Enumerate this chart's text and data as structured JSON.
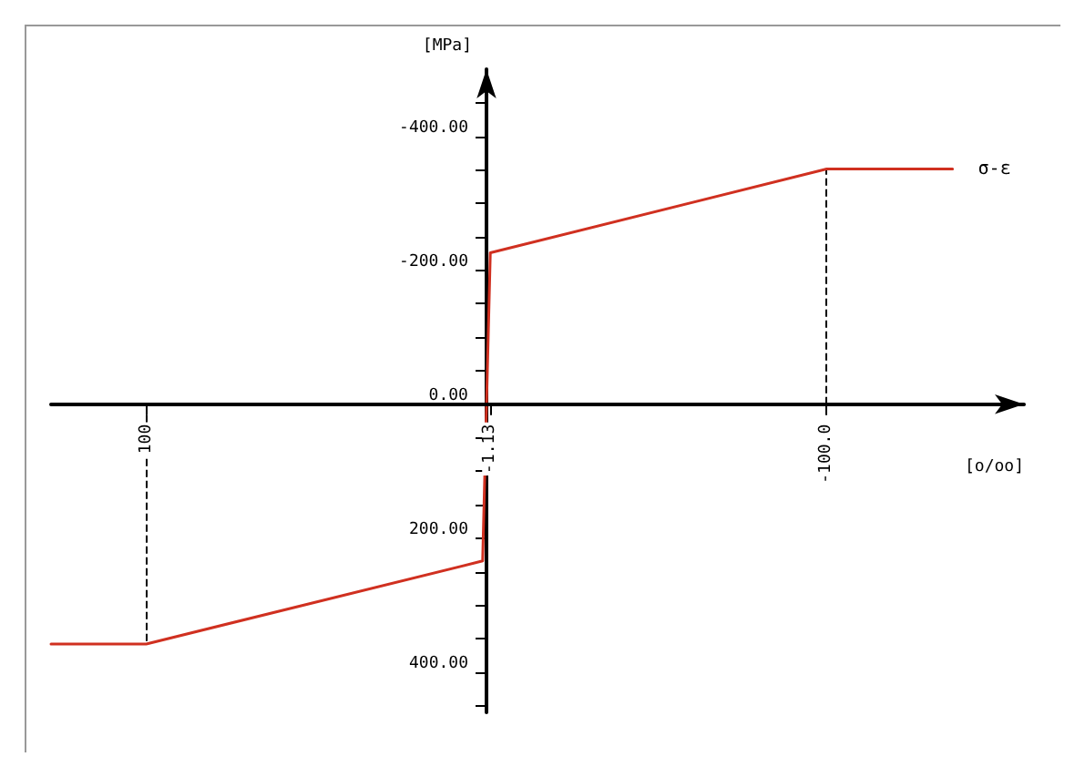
{
  "chart_data": {
    "type": "line",
    "xlabel": "[o/oo]",
    "ylabel": "[MPa]",
    "xlim": [
      128,
      -158
    ],
    "ylim": [
      460,
      -500
    ],
    "xticks": [
      {
        "value": 100,
        "label": "100"
      },
      {
        "value": -1.13,
        "label": "-1.13"
      },
      {
        "value": -100,
        "label": "-100.0"
      }
    ],
    "yticks": [
      {
        "value": -450,
        "label": null
      },
      {
        "value": -400,
        "label": "-400.00"
      },
      {
        "value": -350,
        "label": null
      },
      {
        "value": -300,
        "label": null
      },
      {
        "value": -250,
        "label": null
      },
      {
        "value": -200,
        "label": "-200.00"
      },
      {
        "value": -150,
        "label": null
      },
      {
        "value": -100,
        "label": null
      },
      {
        "value": -50,
        "label": null
      },
      {
        "value": 0,
        "label": "0.00"
      },
      {
        "value": 50,
        "label": null
      },
      {
        "value": 100,
        "label": null
      },
      {
        "value": 150,
        "label": null
      },
      {
        "value": 200,
        "label": "200.00"
      },
      {
        "value": 250,
        "label": null
      },
      {
        "value": 300,
        "label": null
      },
      {
        "value": 350,
        "label": null
      },
      {
        "value": 400,
        "label": "400.00"
      },
      {
        "value": 450,
        "label": null
      }
    ],
    "series": [
      {
        "name": "σ-ε",
        "color": "#d03020",
        "x": [
          128,
          100,
          1.13,
          -1.13,
          -100,
          -137
        ],
        "values": [
          358,
          358,
          234,
          -226,
          -351,
          -351
        ]
      }
    ],
    "ref_lines": [
      {
        "axis": "x",
        "value": 100,
        "line_style": "dashed",
        "color": "#000000"
      },
      {
        "axis": "x",
        "value": -100,
        "line_style": "dashed",
        "color": "#000000"
      }
    ],
    "legend": false,
    "marker": "none",
    "line_style": "solid"
  }
}
